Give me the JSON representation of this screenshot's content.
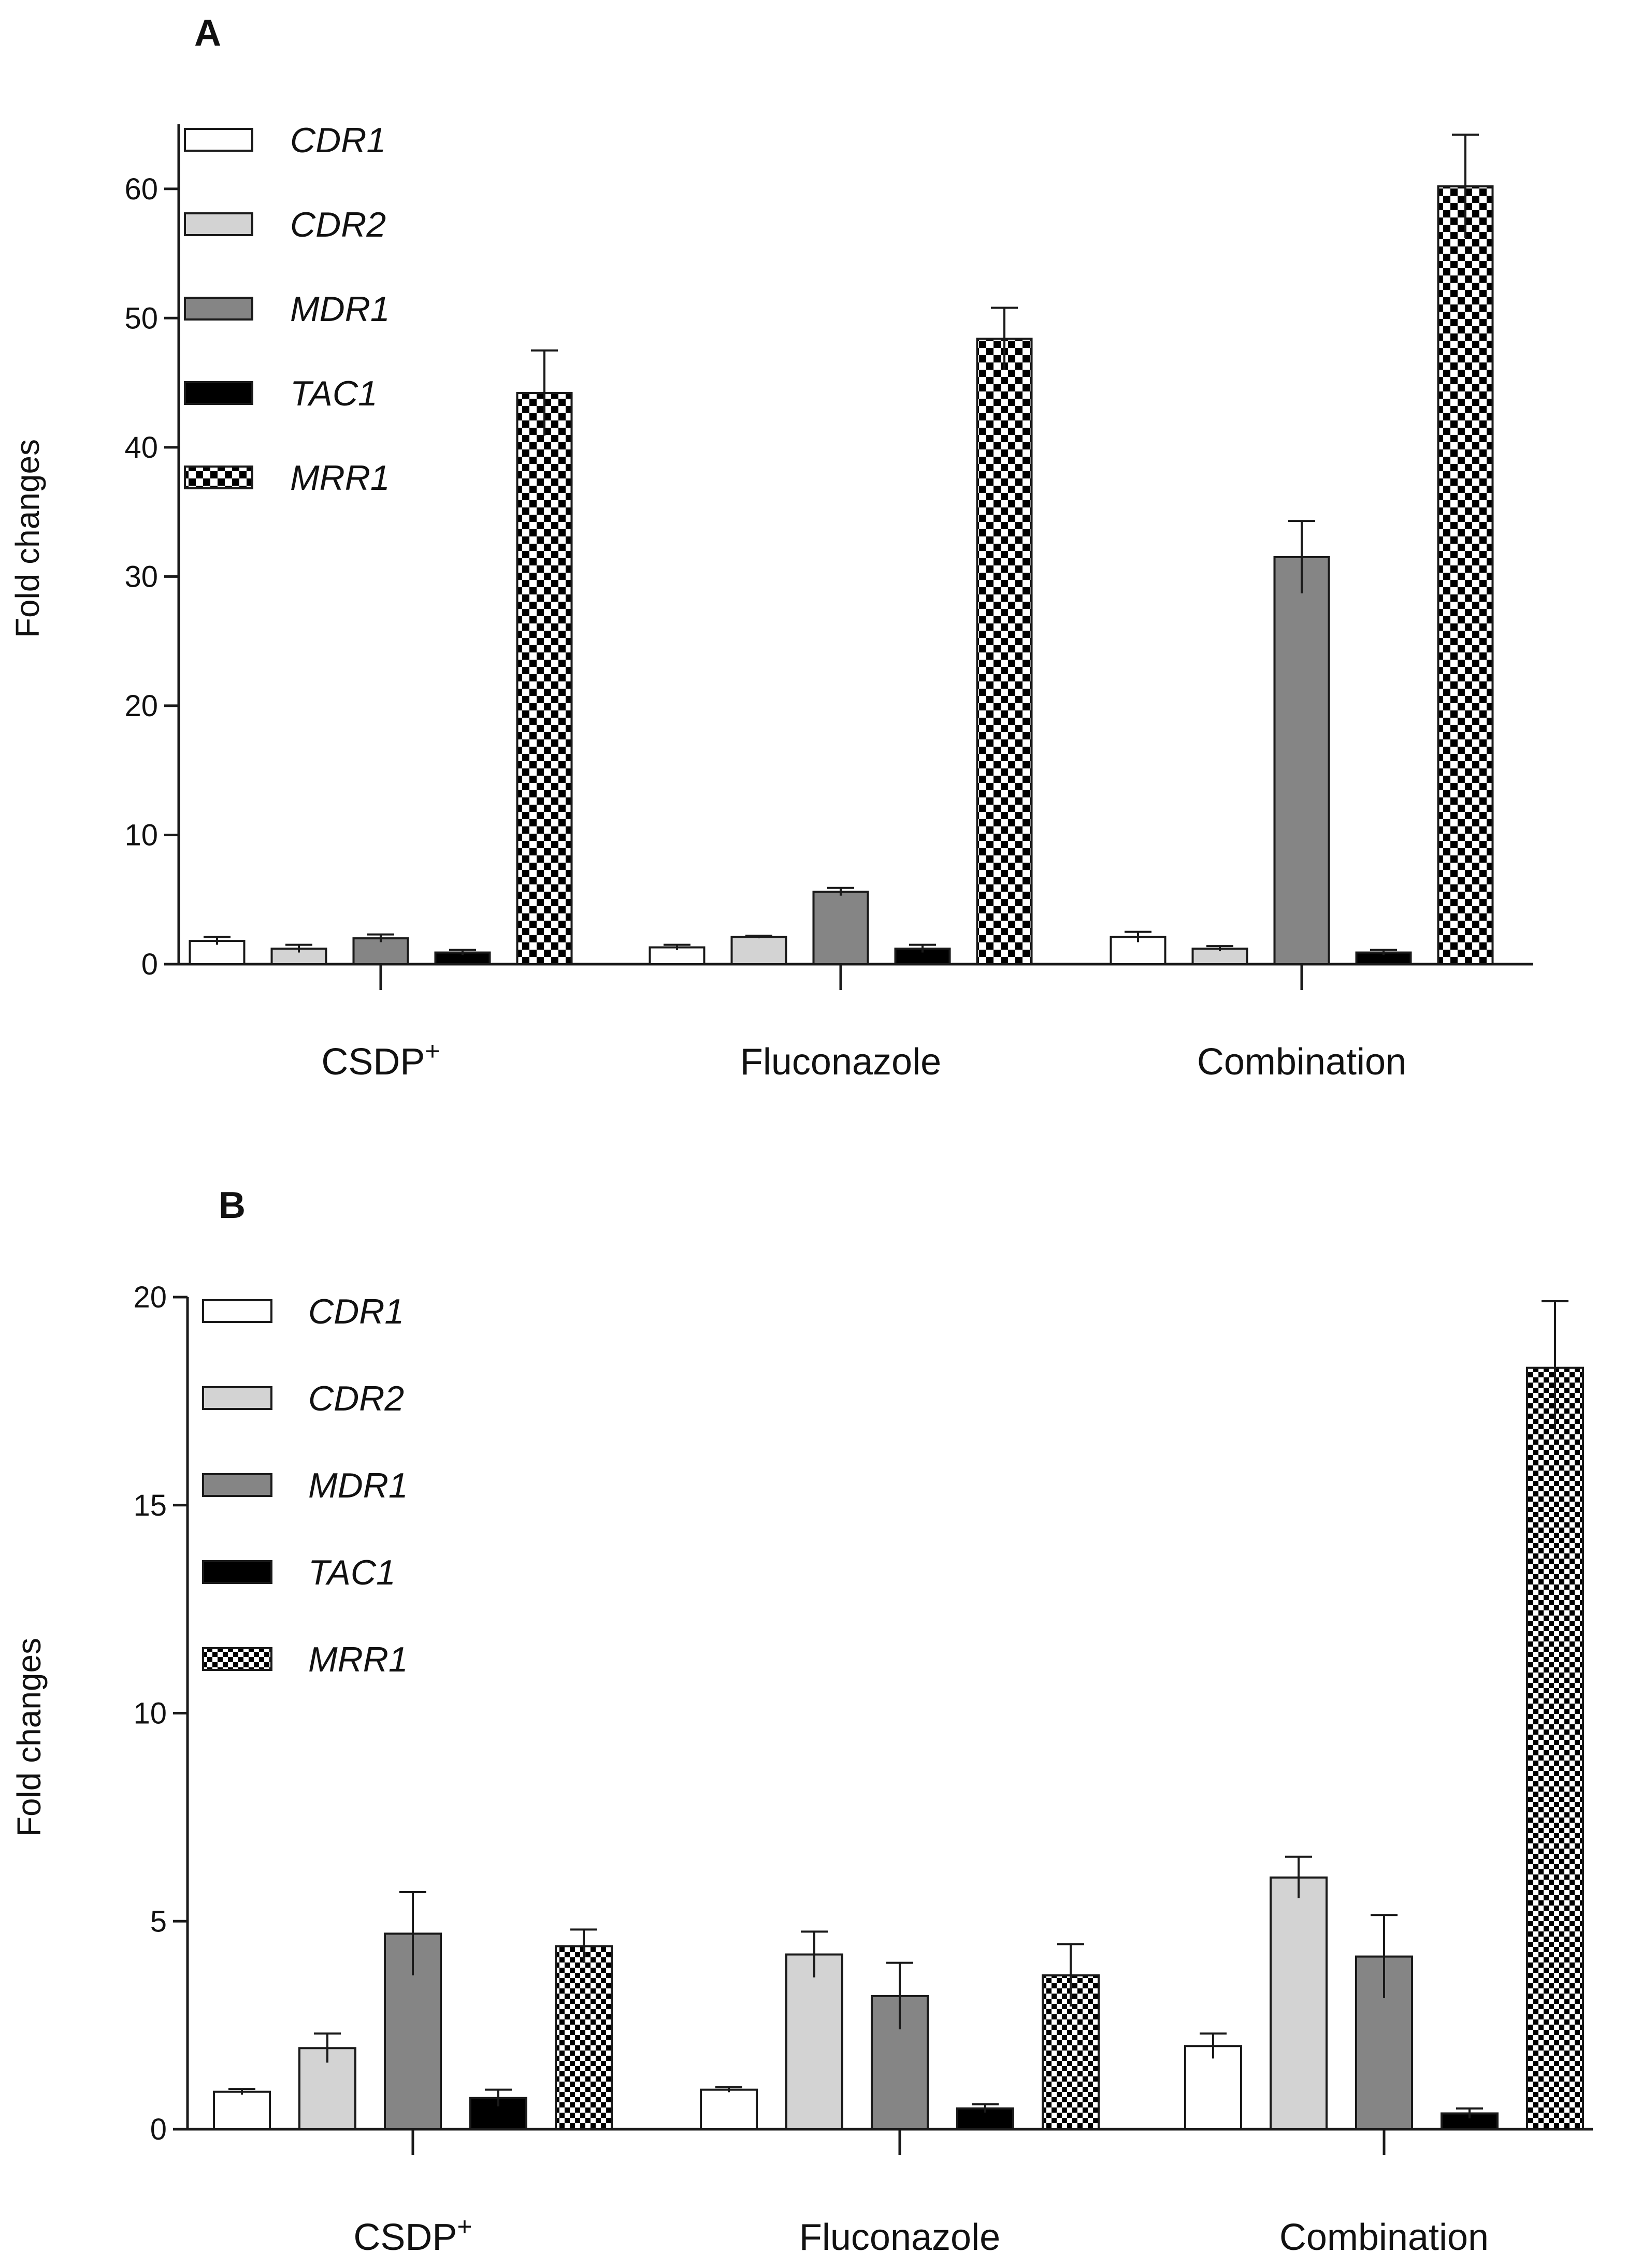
{
  "chart_data": [
    {
      "type": "bar",
      "panel": "A",
      "ylabel": "Fold changes",
      "ylim": [
        0,
        65
      ],
      "yticks": [
        0,
        10,
        20,
        30,
        40,
        50,
        60
      ],
      "groups": [
        {
          "name": "CSDP",
          "superscript": "+"
        },
        {
          "name": "Fluconazole",
          "superscript": ""
        },
        {
          "name": "Combination",
          "superscript": ""
        }
      ],
      "series": [
        {
          "name": "CDR1",
          "fill": "#ffffff",
          "pattern": "",
          "values": [
            1.8,
            1.3,
            2.1
          ],
          "errors": [
            0.3,
            0.2,
            0.4
          ]
        },
        {
          "name": "CDR2",
          "fill": "#d3d3d3",
          "pattern": "",
          "values": [
            1.2,
            2.1,
            1.2
          ],
          "errors": [
            0.3,
            0.1,
            0.2
          ]
        },
        {
          "name": "MDR1",
          "fill": "#858585",
          "pattern": "",
          "values": [
            2.0,
            5.6,
            31.5
          ],
          "errors": [
            0.3,
            0.3,
            2.8
          ]
        },
        {
          "name": "TAC1",
          "fill": "#000000",
          "pattern": "",
          "values": [
            0.9,
            1.2,
            0.9
          ],
          "errors": [
            0.2,
            0.3,
            0.2
          ]
        },
        {
          "name": "MRR1",
          "fill": "#ffffff",
          "pattern": "checker",
          "values": [
            44.2,
            48.4,
            60.2
          ],
          "errors": [
            3.3,
            2.4,
            4.0
          ]
        }
      ]
    },
    {
      "type": "bar",
      "panel": "B",
      "ylabel": "Fold changes",
      "ylim": [
        0,
        20
      ],
      "yticks": [
        0,
        5,
        10,
        15,
        20
      ],
      "groups": [
        {
          "name": "CSDP",
          "superscript": "+"
        },
        {
          "name": "Fluconazole",
          "superscript": ""
        },
        {
          "name": "Combination",
          "superscript": ""
        }
      ],
      "series": [
        {
          "name": "CDR1",
          "fill": "#ffffff",
          "pattern": "",
          "values": [
            0.9,
            0.95,
            2.0
          ],
          "errors": [
            0.07,
            0.06,
            0.3
          ]
        },
        {
          "name": "CDR2",
          "fill": "#d3d3d3",
          "pattern": "",
          "values": [
            1.95,
            4.2,
            6.05
          ],
          "errors": [
            0.35,
            0.55,
            0.5
          ]
        },
        {
          "name": "MDR1",
          "fill": "#858585",
          "pattern": "",
          "values": [
            4.7,
            3.2,
            4.15
          ],
          "errors": [
            1.0,
            0.8,
            1.0
          ]
        },
        {
          "name": "TAC1",
          "fill": "#000000",
          "pattern": "",
          "values": [
            0.75,
            0.5,
            0.38
          ],
          "errors": [
            0.2,
            0.1,
            0.12
          ]
        },
        {
          "name": "MRR1",
          "fill": "#ffffff",
          "pattern": "checker",
          "values": [
            4.4,
            3.7,
            18.3
          ],
          "errors": [
            0.4,
            0.75,
            1.6
          ]
        }
      ]
    }
  ]
}
